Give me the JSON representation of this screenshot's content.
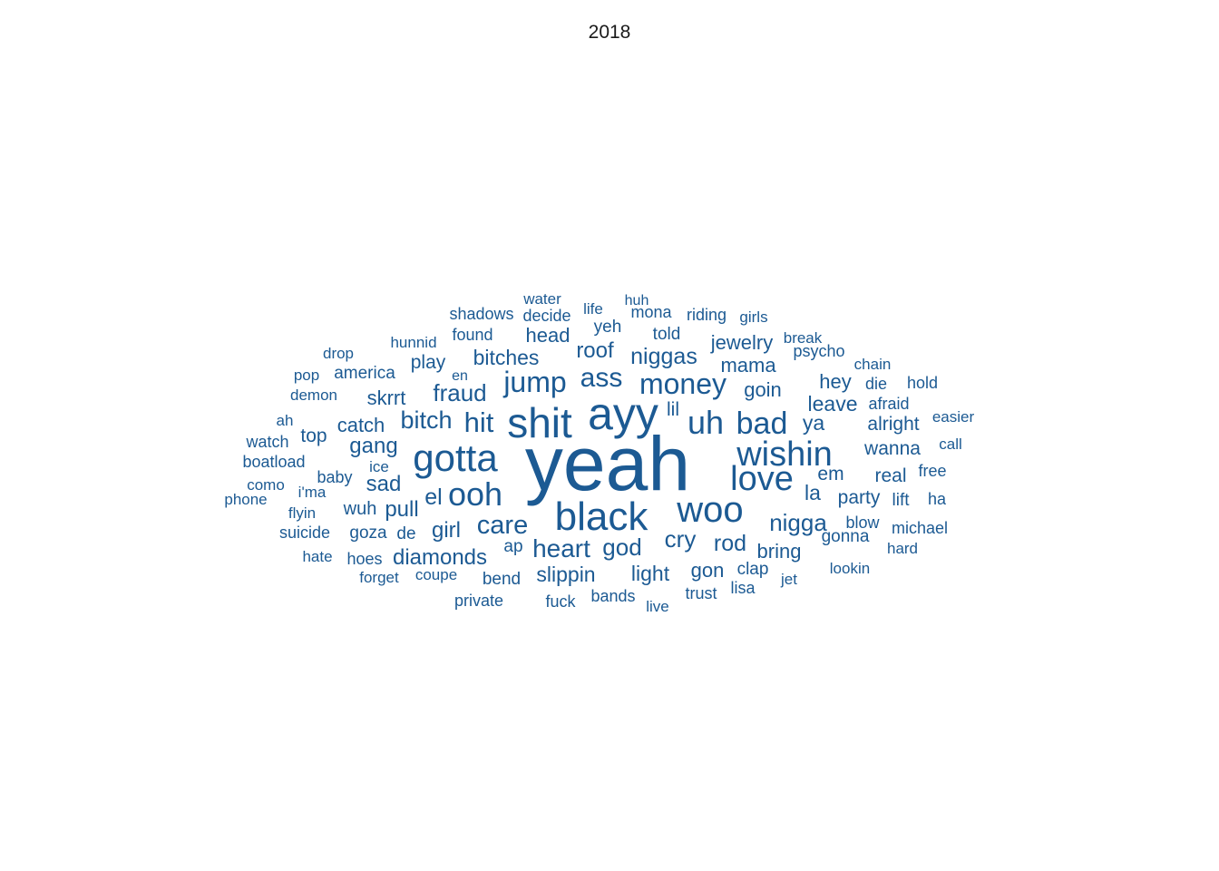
{
  "chart_data": {
    "type": "wordcloud",
    "title": "2018",
    "color": "#1c5a93",
    "words": [
      {
        "text": "yeah",
        "size": 84
      },
      {
        "text": "ayy",
        "size": 50
      },
      {
        "text": "shit",
        "size": 46
      },
      {
        "text": "black",
        "size": 44
      },
      {
        "text": "gotta",
        "size": 42
      },
      {
        "text": "woo",
        "size": 40
      },
      {
        "text": "love",
        "size": 38
      },
      {
        "text": "wishin",
        "size": 38
      },
      {
        "text": "uh",
        "size": 36
      },
      {
        "text": "ooh",
        "size": 36
      },
      {
        "text": "bad",
        "size": 34
      },
      {
        "text": "money",
        "size": 32
      },
      {
        "text": "jump",
        "size": 32
      },
      {
        "text": "hit",
        "size": 31
      },
      {
        "text": "ass",
        "size": 30
      },
      {
        "text": "care",
        "size": 29
      },
      {
        "text": "heart",
        "size": 28
      },
      {
        "text": "bitch",
        "size": 27
      },
      {
        "text": "nigga",
        "size": 26
      },
      {
        "text": "god",
        "size": 26
      },
      {
        "text": "cry",
        "size": 26
      },
      {
        "text": "fraud",
        "size": 26
      },
      {
        "text": "rod",
        "size": 25
      },
      {
        "text": "el",
        "size": 25
      },
      {
        "text": "niggas",
        "size": 25
      },
      {
        "text": "roof",
        "size": 24
      },
      {
        "text": "girl",
        "size": 24
      },
      {
        "text": "sad",
        "size": 24
      },
      {
        "text": "diamonds",
        "size": 24
      },
      {
        "text": "gang",
        "size": 24
      },
      {
        "text": "pull",
        "size": 24
      },
      {
        "text": "bitches",
        "size": 23
      },
      {
        "text": "slippin",
        "size": 23
      },
      {
        "text": "light",
        "size": 23
      },
      {
        "text": "la",
        "size": 23
      },
      {
        "text": "ya",
        "size": 23
      },
      {
        "text": "leave",
        "size": 23
      },
      {
        "text": "skrrt",
        "size": 22
      },
      {
        "text": "jewelry",
        "size": 22
      },
      {
        "text": "mama",
        "size": 22
      },
      {
        "text": "goin",
        "size": 22
      },
      {
        "text": "catch",
        "size": 22
      },
      {
        "text": "gon",
        "size": 22
      },
      {
        "text": "bring",
        "size": 22
      },
      {
        "text": "head",
        "size": 22
      },
      {
        "text": "hey",
        "size": 22
      },
      {
        "text": "alright",
        "size": 21
      },
      {
        "text": "party",
        "size": 21
      },
      {
        "text": "top",
        "size": 21
      },
      {
        "text": "play",
        "size": 21
      },
      {
        "text": "wanna",
        "size": 21
      },
      {
        "text": "real",
        "size": 21
      },
      {
        "text": "em",
        "size": 21
      },
      {
        "text": "lil",
        "size": 21
      },
      {
        "text": "wuh",
        "size": 20
      },
      {
        "text": "told",
        "size": 19
      },
      {
        "text": "yeh",
        "size": 19
      },
      {
        "text": "america",
        "size": 19
      },
      {
        "text": "ap",
        "size": 19
      },
      {
        "text": "goza",
        "size": 19
      },
      {
        "text": "de",
        "size": 19
      },
      {
        "text": "clap",
        "size": 19
      },
      {
        "text": "lift",
        "size": 19
      },
      {
        "text": "bend",
        "size": 19
      },
      {
        "text": "gonna",
        "size": 19
      },
      {
        "text": "baby",
        "size": 18
      },
      {
        "text": "hoes",
        "size": 18
      },
      {
        "text": "trust",
        "size": 18
      },
      {
        "text": "shadows",
        "size": 18
      },
      {
        "text": "found",
        "size": 18
      },
      {
        "text": "psycho",
        "size": 18
      },
      {
        "text": "michael",
        "size": 18
      },
      {
        "text": "bands",
        "size": 18
      },
      {
        "text": "fuck",
        "size": 18
      },
      {
        "text": "private",
        "size": 18
      },
      {
        "text": "blow",
        "size": 18
      },
      {
        "text": "riding",
        "size": 18
      },
      {
        "text": "afraid",
        "size": 18
      },
      {
        "text": "watch",
        "size": 18
      },
      {
        "text": "boatload",
        "size": 18
      },
      {
        "text": "suicide",
        "size": 18
      },
      {
        "text": "mona",
        "size": 18
      },
      {
        "text": "decide",
        "size": 18
      },
      {
        "text": "lisa",
        "size": 18
      },
      {
        "text": "ha",
        "size": 18
      },
      {
        "text": "free",
        "size": 18
      },
      {
        "text": "hold",
        "size": 18
      },
      {
        "text": "die",
        "size": 18
      },
      {
        "text": "lookin",
        "size": 17
      },
      {
        "text": "demon",
        "size": 17
      },
      {
        "text": "flyin",
        "size": 17
      },
      {
        "text": "hunnid",
        "size": 17
      },
      {
        "text": "drop",
        "size": 17
      },
      {
        "text": "forget",
        "size": 17
      },
      {
        "text": "coupe",
        "size": 17
      },
      {
        "text": "hate",
        "size": 17
      },
      {
        "text": "i'ma",
        "size": 17
      },
      {
        "text": "ice",
        "size": 17
      },
      {
        "text": "water",
        "size": 17
      },
      {
        "text": "life",
        "size": 17
      },
      {
        "text": "chain",
        "size": 17
      },
      {
        "text": "live",
        "size": 17
      },
      {
        "text": "jet",
        "size": 17
      },
      {
        "text": "hard",
        "size": 17
      },
      {
        "text": "easier",
        "size": 17
      },
      {
        "text": "call",
        "size": 17
      },
      {
        "text": "break",
        "size": 17
      },
      {
        "text": "girls",
        "size": 17
      },
      {
        "text": "pop",
        "size": 17
      },
      {
        "text": "ah",
        "size": 17
      },
      {
        "text": "como",
        "size": 17
      },
      {
        "text": "phone",
        "size": 17
      },
      {
        "text": "huh",
        "size": 16
      },
      {
        "text": "en",
        "size": 16
      }
    ]
  }
}
